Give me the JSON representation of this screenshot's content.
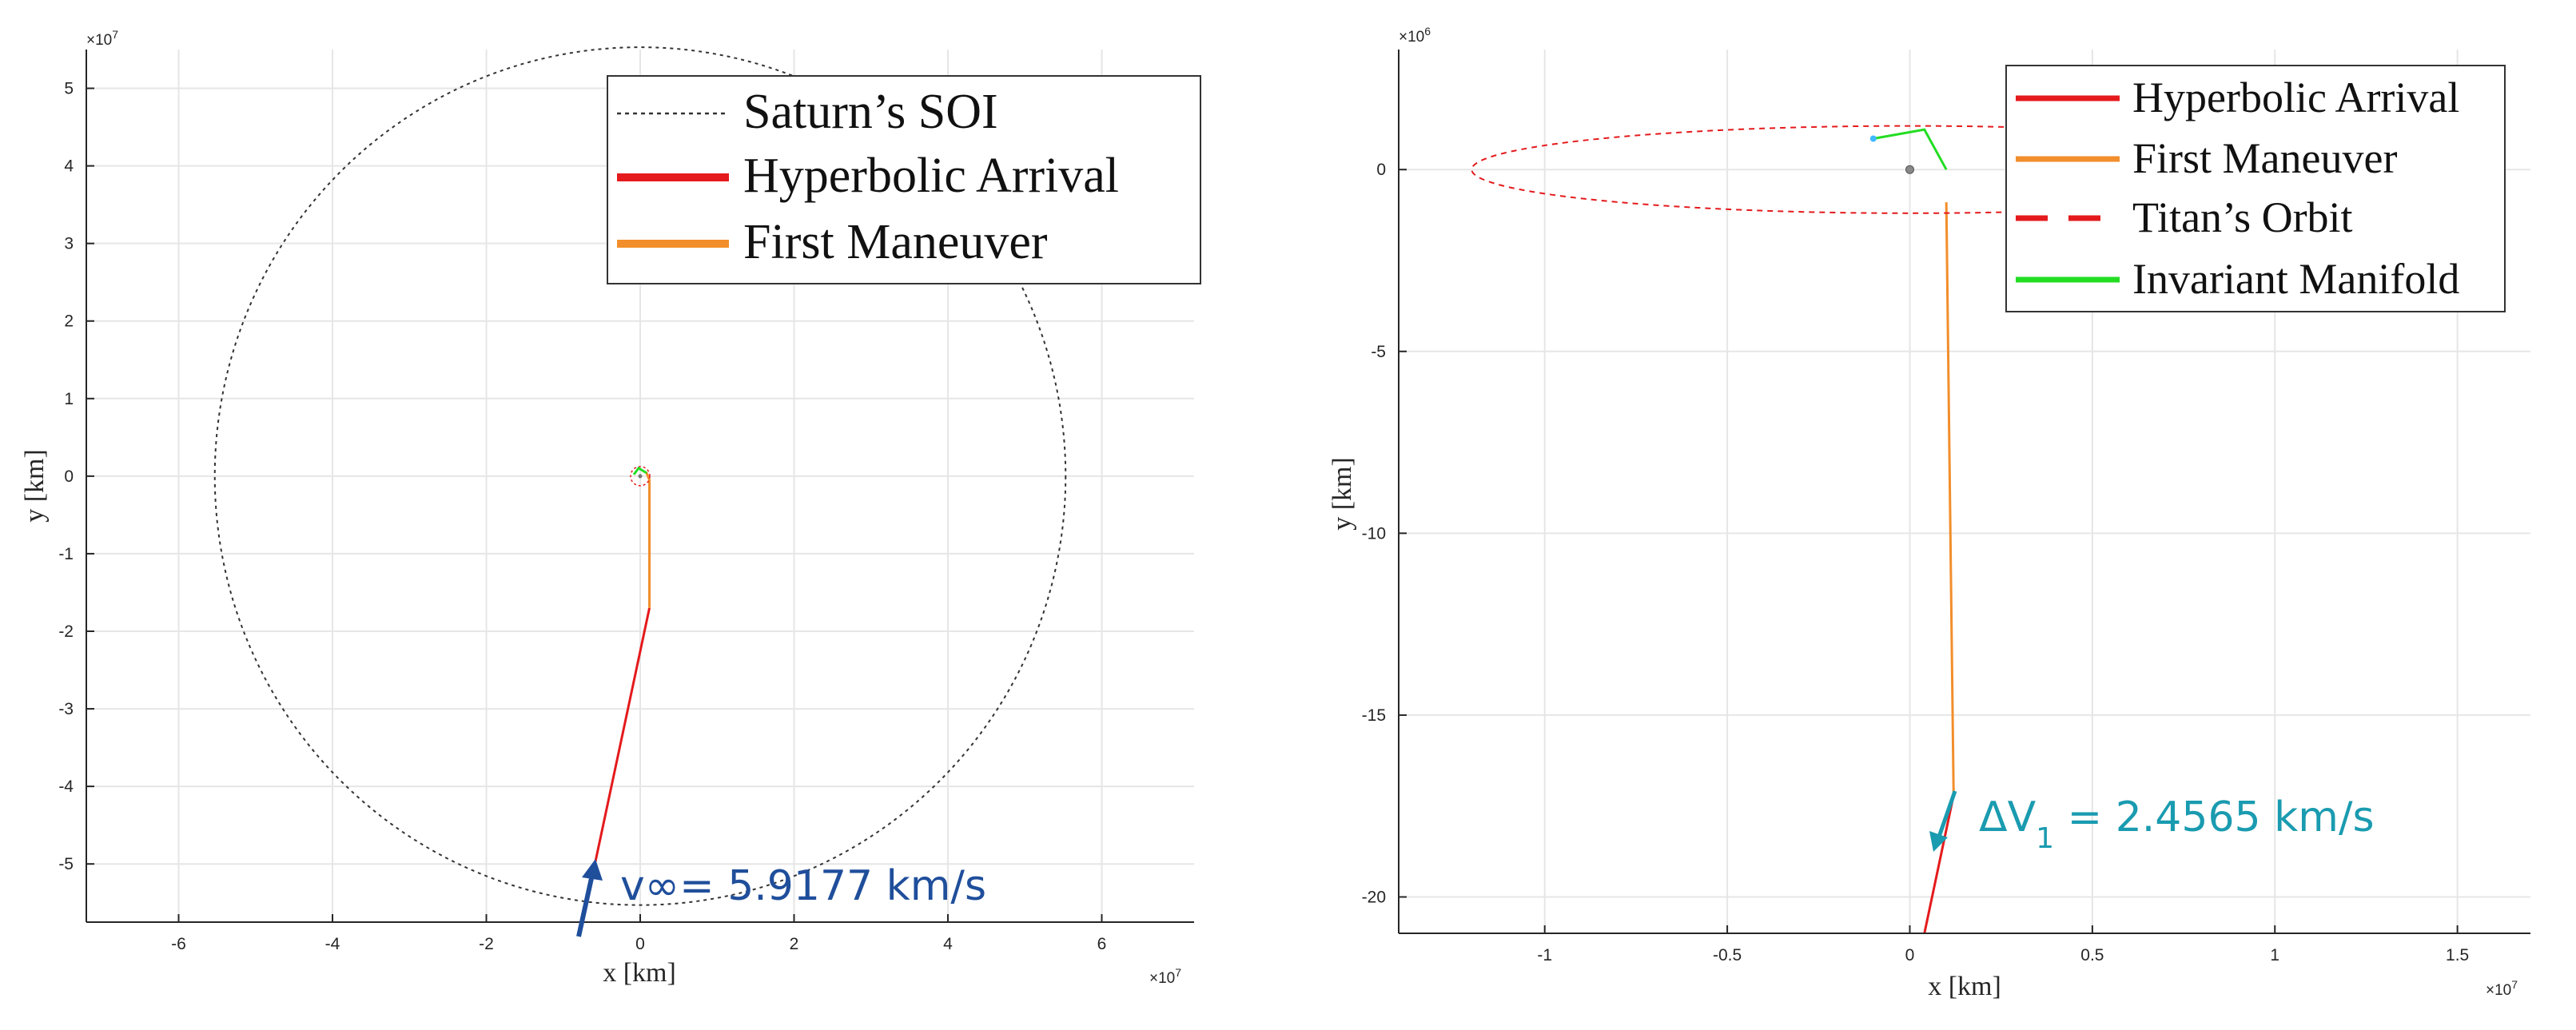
{
  "chart_data": [
    {
      "type": "line",
      "xlabel": "x [km]",
      "ylabel": "y [km]",
      "x_exponent_base": "×10",
      "x_exponent": "7",
      "y_exponent_base": "×10",
      "y_exponent": "7",
      "xlim": [
        -7.2,
        7.2
      ],
      "ylim": [
        -5.75,
        5.5
      ],
      "xticks": [
        -6,
        -4,
        -2,
        0,
        2,
        4,
        6
      ],
      "xtick_labels": [
        "-6",
        "-4",
        "-2",
        "0",
        "2",
        "4",
        "6"
      ],
      "yticks": [
        5,
        4,
        3,
        2,
        1,
        0,
        -1,
        -2,
        -3,
        -4,
        -5
      ],
      "ytick_labels": [
        "5",
        "4",
        "3",
        "2",
        "1",
        "0",
        "-1",
        "-2",
        "-3",
        "-4",
        "-5"
      ],
      "grid": true,
      "legend_position": "top-right",
      "series": [
        {
          "name": "Saturn’s SOI",
          "color": "#333333",
          "style": "dotted",
          "circle": {
            "cx": 0,
            "cy": 0,
            "r": 5.53
          }
        },
        {
          "name": "Hyperbolic Arrival",
          "color": "#e41a1c",
          "style": "solid",
          "x": [
            -0.75,
            0.12
          ],
          "y": [
            -5.75,
            -1.7
          ]
        },
        {
          "name": "First Maneuver",
          "color": "#f28e2b",
          "style": "solid",
          "x": [
            0.12,
            0.12,
            0.08
          ],
          "y": [
            -1.7,
            -0.05,
            0.05
          ]
        }
      ],
      "extra": {
        "titan_orbit": {
          "color": "#e41a1c",
          "r": 0.12
        },
        "manifold_color": "#22dd22"
      },
      "annotation": {
        "text": "v∞= 5.9177 km/s",
        "color": "#1f4e9b"
      }
    },
    {
      "type": "line",
      "xlabel": "x [km]",
      "ylabel": "y [km]",
      "x_exponent_base": "×10",
      "x_exponent": "7",
      "y_exponent_base": "×10",
      "y_exponent": "6",
      "xlim": [
        -1.4,
        1.7
      ],
      "ylim": [
        -21.0,
        3.3
      ],
      "xticks": [
        -1,
        -0.5,
        0,
        0.5,
        1,
        1.5
      ],
      "xtick_labels": [
        "-1",
        "-0.5",
        "0",
        "0.5",
        "1",
        "1.5"
      ],
      "yticks": [
        0,
        -5,
        -10,
        -15,
        -20
      ],
      "ytick_labels": [
        "0",
        "-5",
        "-10",
        "-15",
        "-20"
      ],
      "grid": true,
      "legend_position": "top-right",
      "series": [
        {
          "name": "Hyperbolic Arrival",
          "color": "#e41a1c",
          "style": "solid",
          "x": [
            0.04,
            0.12
          ],
          "y": [
            -21.0,
            -17.2
          ]
        },
        {
          "name": "First Maneuver",
          "color": "#f28e2b",
          "style": "solid",
          "x": [
            0.12,
            0.1
          ],
          "y": [
            -17.2,
            -0.9
          ]
        },
        {
          "name": "Titan’s Orbit",
          "color": "#e41a1c",
          "style": "dashed",
          "circle": {
            "cx": 0,
            "cy": 0,
            "r": 1.2
          }
        },
        {
          "name": "Invariant Manifold",
          "color": "#22dd22",
          "style": "solid",
          "x": [
            -0.1,
            0.04,
            0.1
          ],
          "y": [
            0.85,
            1.1,
            0.0
          ]
        }
      ],
      "annotation": {
        "text_main": "ΔV",
        "text_sub": "1",
        "text_rest": " = 2.4565 km/s",
        "color": "#1a9bb0"
      }
    }
  ]
}
